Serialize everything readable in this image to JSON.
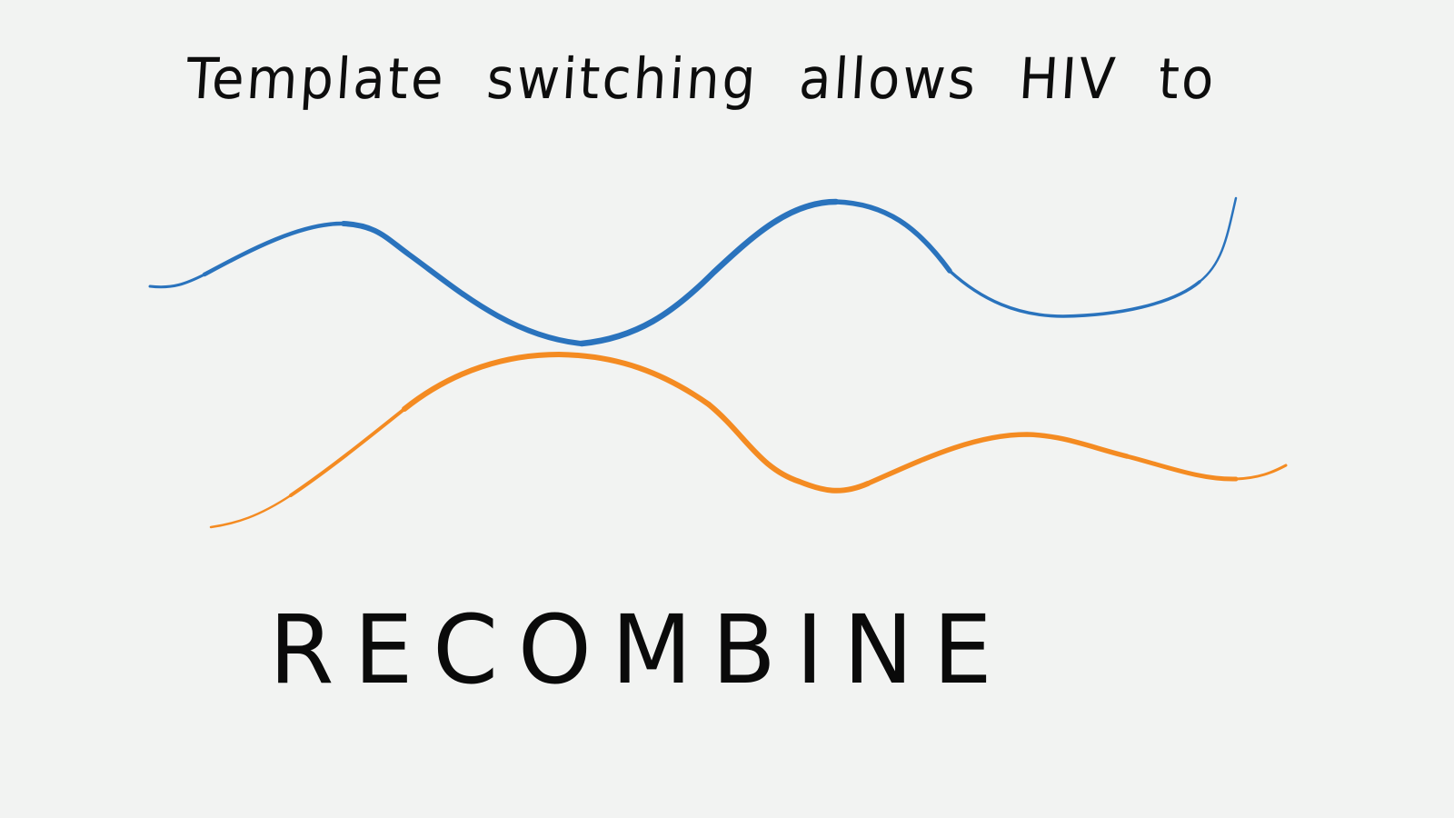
{
  "headline": "Template switching allows HIV to",
  "word": "RECOMBINE",
  "colors": {
    "background": "#f2f3f2",
    "ink": "#0d0d0d",
    "strand_1": "#2a73bd",
    "strand_2": "#f48b22"
  }
}
